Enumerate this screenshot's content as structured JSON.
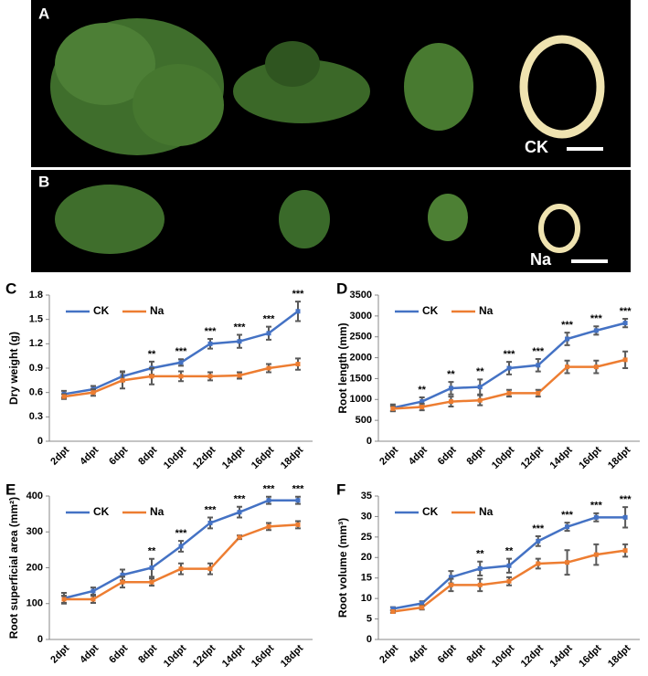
{
  "photos": [
    {
      "label": "A",
      "tag": "CK"
    },
    {
      "label": "B",
      "tag": "Na"
    }
  ],
  "chart_data": [
    {
      "type": "line",
      "panel_label": "C",
      "ylabel": "Dry weight (g)",
      "categories": [
        "2dpt",
        "4dpt",
        "6dpt",
        "8dpt",
        "10dpt",
        "12dpt",
        "14dpt",
        "16dpt",
        "18dpt"
      ],
      "ylim": [
        0,
        1.8
      ],
      "yticks": [
        0,
        0.3,
        0.6,
        0.9,
        1.2,
        1.5,
        1.8
      ],
      "series": [
        {
          "name": "CK",
          "color": "#4472c4",
          "values": [
            0.58,
            0.64,
            0.8,
            0.9,
            0.97,
            1.2,
            1.23,
            1.33,
            1.6
          ],
          "errors": [
            0.04,
            0.04,
            0.06,
            0.08,
            0.04,
            0.06,
            0.08,
            0.08,
            0.12
          ]
        },
        {
          "name": "Na",
          "color": "#ed7d31",
          "values": [
            0.55,
            0.6,
            0.75,
            0.8,
            0.8,
            0.8,
            0.81,
            0.9,
            0.95
          ],
          "errors": [
            0.03,
            0.04,
            0.1,
            0.1,
            0.06,
            0.05,
            0.04,
            0.05,
            0.07
          ]
        }
      ],
      "significance": [
        null,
        null,
        null,
        "**",
        "***",
        "***",
        "***",
        "***",
        "***"
      ]
    },
    {
      "type": "line",
      "panel_label": "D",
      "ylabel": "Root length (mm)",
      "categories": [
        "2dpt",
        "4dpt",
        "6dpt",
        "8dpt",
        "10dpt",
        "12dpt",
        "14dpt",
        "16dpt",
        "18dpt"
      ],
      "ylim": [
        0,
        3500
      ],
      "yticks": [
        0,
        500,
        1000,
        1500,
        2000,
        2500,
        3000,
        3500
      ],
      "series": [
        {
          "name": "CK",
          "color": "#4472c4",
          "values": [
            800,
            950,
            1270,
            1300,
            1750,
            1820,
            2450,
            2650,
            2830
          ],
          "errors": [
            80,
            100,
            150,
            180,
            150,
            150,
            150,
            100,
            100
          ]
        },
        {
          "name": "Na",
          "color": "#ed7d31",
          "values": [
            780,
            820,
            950,
            980,
            1150,
            1150,
            1780,
            1780,
            1950
          ],
          "errors": [
            60,
            80,
            120,
            120,
            80,
            80,
            150,
            150,
            200
          ]
        }
      ],
      "significance": [
        null,
        "**",
        "**",
        "**",
        "***",
        "***",
        "***",
        "***",
        "***"
      ]
    },
    {
      "type": "line",
      "panel_label": "E",
      "ylabel": "Root superficial area (mm²)",
      "categories": [
        "2dpt",
        "4dpt",
        "6dpt",
        "8dpt",
        "10dpt",
        "12dpt",
        "14dpt",
        "16dpt",
        "18dpt"
      ],
      "ylim": [
        0,
        400
      ],
      "yticks": [
        0,
        100,
        200,
        300,
        400
      ],
      "series": [
        {
          "name": "CK",
          "color": "#4472c4",
          "values": [
            115,
            135,
            180,
            200,
            260,
            325,
            355,
            388,
            388
          ],
          "errors": [
            15,
            10,
            15,
            25,
            15,
            15,
            15,
            10,
            10
          ]
        },
        {
          "name": "Na",
          "color": "#ed7d31",
          "values": [
            112,
            112,
            160,
            160,
            197,
            197,
            285,
            315,
            320
          ],
          "errors": [
            10,
            10,
            15,
            10,
            15,
            15,
            5,
            10,
            10
          ]
        }
      ],
      "significance": [
        null,
        null,
        null,
        "**",
        "***",
        "***",
        "***",
        "***",
        "***"
      ]
    },
    {
      "type": "line",
      "panel_label": "F",
      "ylabel": "Root volume (mm³)",
      "categories": [
        "2dpt",
        "4dpt",
        "6dpt",
        "8dpt",
        "10dpt",
        "12dpt",
        "14dpt",
        "16dpt",
        "18dpt"
      ],
      "ylim": [
        0,
        35
      ],
      "yticks": [
        0,
        5,
        10,
        15,
        20,
        25,
        30,
        35
      ],
      "series": [
        {
          "name": "CK",
          "color": "#4472c4",
          "values": [
            7.5,
            8.8,
            15.2,
            17.3,
            18,
            24,
            27.5,
            29.8,
            29.8
          ],
          "errors": [
            0.4,
            0.5,
            1.5,
            1.7,
            1.7,
            1.2,
            1,
            1,
            2.5
          ]
        },
        {
          "name": "Na",
          "color": "#ed7d31",
          "values": [
            6.8,
            7.8,
            13.3,
            13.3,
            14.2,
            18.5,
            18.8,
            20.7,
            21.7
          ],
          "errors": [
            0.3,
            0.5,
            1.5,
            1.5,
            1,
            1.2,
            3,
            2.5,
            1.5
          ]
        }
      ],
      "significance": [
        null,
        null,
        null,
        "**",
        "**",
        "***",
        "***",
        "***",
        "***"
      ]
    }
  ]
}
